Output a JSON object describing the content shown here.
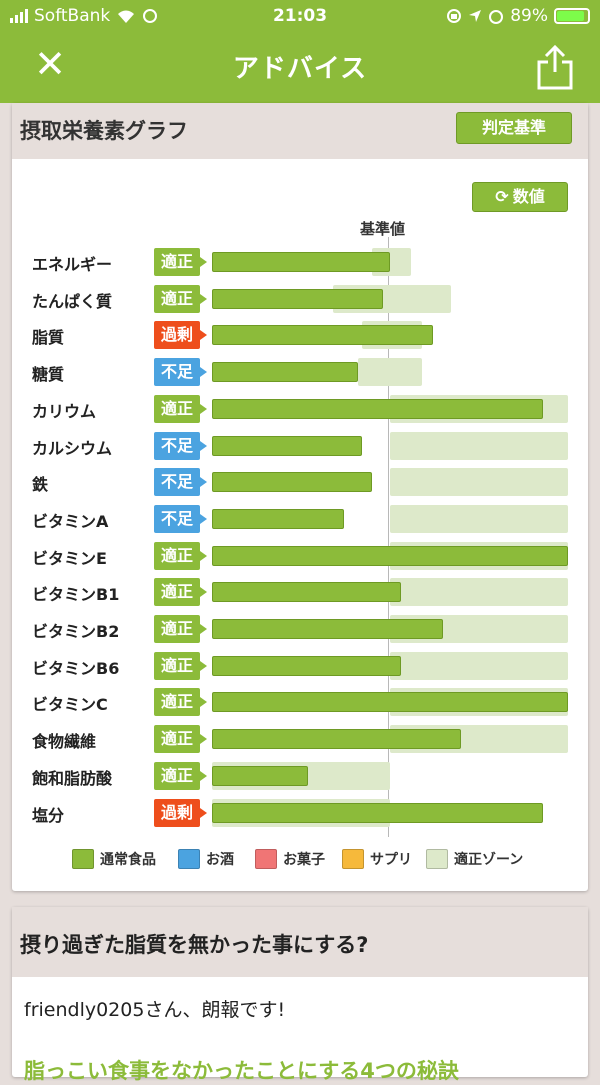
{
  "status_bar": {
    "carrier": "SoftBank",
    "time": "21:03",
    "battery_percent": "89%",
    "battery_level": 0.89
  },
  "header": {
    "title": "アドバイス",
    "close_icon": "close-icon",
    "share_icon": "share-icon"
  },
  "section1": {
    "title": "摂取栄養素グラフ",
    "judge_button": "判定基準",
    "number_button": "数値",
    "baseline_label": "基準値"
  },
  "nutrients": [
    {
      "label": "エネルギー",
      "status": "適正",
      "status_color": "#8cbb3a",
      "bar": 0.5,
      "zone_start": 0.45,
      "zone_end": 0.56
    },
    {
      "label": "たんぱく質",
      "status": "適正",
      "status_color": "#8cbb3a",
      "bar": 0.48,
      "zone_start": 0.34,
      "zone_end": 0.67
    },
    {
      "label": "脂質",
      "status": "過剰",
      "status_color": "#ee4e1c",
      "bar": 0.62,
      "zone_start": 0.42,
      "zone_end": 0.59
    },
    {
      "label": "糖質",
      "status": "不足",
      "status_color": "#4ba3e0",
      "bar": 0.41,
      "zone_start": 0.41,
      "zone_end": 0.59
    },
    {
      "label": "カリウム",
      "status": "適正",
      "status_color": "#8cbb3a",
      "bar": 0.93,
      "zone_start": 0.5,
      "zone_end": 1.0
    },
    {
      "label": "カルシウム",
      "status": "不足",
      "status_color": "#4ba3e0",
      "bar": 0.42,
      "zone_start": 0.5,
      "zone_end": 1.0
    },
    {
      "label": "鉄",
      "status": "不足",
      "status_color": "#4ba3e0",
      "bar": 0.45,
      "zone_start": 0.5,
      "zone_end": 1.0
    },
    {
      "label": "ビタミンA",
      "status": "不足",
      "status_color": "#4ba3e0",
      "bar": 0.37,
      "zone_start": 0.5,
      "zone_end": 1.0
    },
    {
      "label": "ビタミンE",
      "status": "適正",
      "status_color": "#8cbb3a",
      "bar": 1.0,
      "zone_start": 0.5,
      "zone_end": 1.0
    },
    {
      "label": "ビタミンB1",
      "status": "適正",
      "status_color": "#8cbb3a",
      "bar": 0.53,
      "zone_start": 0.5,
      "zone_end": 1.0
    },
    {
      "label": "ビタミンB2",
      "status": "適正",
      "status_color": "#8cbb3a",
      "bar": 0.65,
      "zone_start": 0.5,
      "zone_end": 1.0
    },
    {
      "label": "ビタミンB6",
      "status": "適正",
      "status_color": "#8cbb3a",
      "bar": 0.53,
      "zone_start": 0.5,
      "zone_end": 1.0
    },
    {
      "label": "ビタミンC",
      "status": "適正",
      "status_color": "#8cbb3a",
      "bar": 1.0,
      "zone_start": 0.5,
      "zone_end": 1.0
    },
    {
      "label": "食物繊維",
      "status": "適正",
      "status_color": "#8cbb3a",
      "bar": 0.7,
      "zone_start": 0.5,
      "zone_end": 1.0
    },
    {
      "label": "飽和脂肪酸",
      "status": "適正",
      "status_color": "#8cbb3a",
      "bar": 0.27,
      "zone_start": 0.0,
      "zone_end": 0.5
    },
    {
      "label": "塩分",
      "status": "過剰",
      "status_color": "#ee4e1c",
      "bar": 0.93,
      "zone_start": 0.0,
      "zone_end": 0.5
    }
  ],
  "legend": [
    {
      "label": "通常食品",
      "color": "#8cbb3a"
    },
    {
      "label": "お酒",
      "color": "#4ba3e0"
    },
    {
      "label": "お菓子",
      "color": "#f07575"
    },
    {
      "label": "サプリ",
      "color": "#f6b93b"
    },
    {
      "label": "適正ゾーン",
      "color": "#dde9ca"
    }
  ],
  "section2": {
    "title": "摂り過ぎた脂質を無かった事にする?",
    "greeting": "friendly0205さん、朗報です!",
    "link": "脂っこい食事をなかったことにする4つの秘訣"
  }
}
